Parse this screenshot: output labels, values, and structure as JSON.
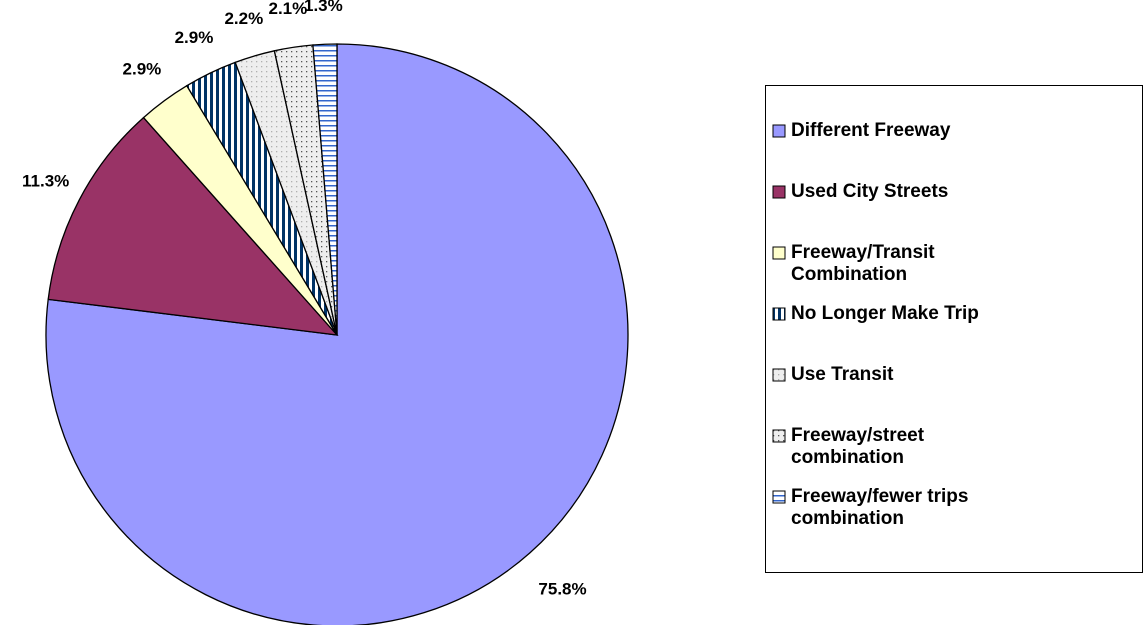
{
  "chart_data": {
    "type": "pie",
    "categories": [
      "Different Freeway",
      "Used City Streets",
      "Freeway/Transit Combination",
      "No Longer Make Trip",
      "Use Transit",
      "Freeway/street combination",
      "Freeway/fewer trips combination"
    ],
    "values": [
      75.8,
      11.3,
      2.9,
      2.9,
      2.2,
      2.1,
      1.3
    ],
    "value_labels": [
      "75.8%",
      "11.3%",
      "2.9%",
      "2.9%",
      "2.2%",
      "2.1%",
      "1.3%"
    ],
    "colors": [
      "#9999ff",
      "#993366",
      "#ffffcc",
      "#003366",
      "#b0b0b0",
      "#555555",
      "#3366cc"
    ],
    "patterns": [
      "solid",
      "solid",
      "solid",
      "vertical",
      "dots",
      "dots",
      "horizontal"
    ],
    "legend": "right"
  }
}
